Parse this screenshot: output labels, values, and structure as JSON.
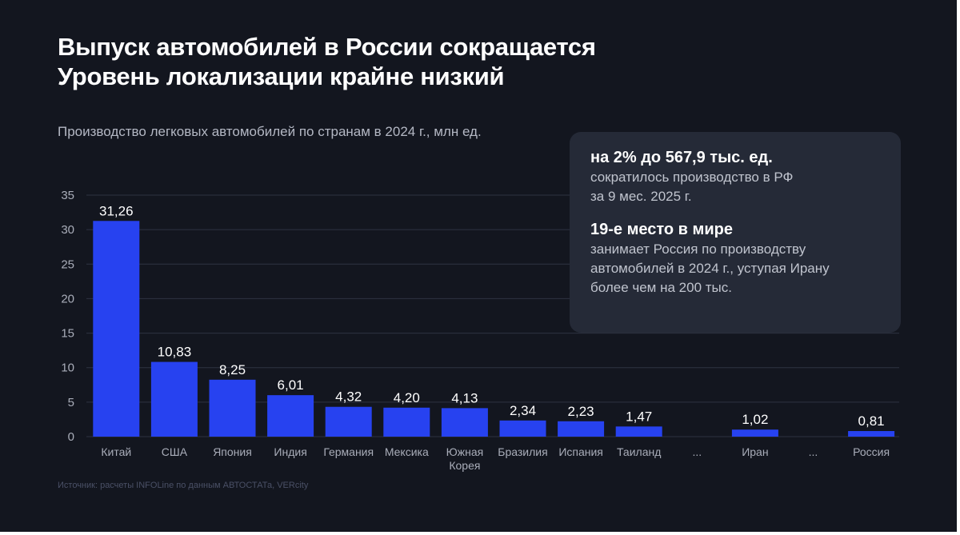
{
  "title_line1": "Выпуск автомобилей в России сокращается",
  "title_line2": "Уровень локализации крайне низкий",
  "source": "Источник: расчеты INFOLine по данным АВТОСТАТа, VERcity",
  "card": {
    "stat1_head": "на 2% до 567,9 тыс. ед.",
    "stat1_line1": "сократилось производство в РФ",
    "stat1_line2": "за 9 мес. 2025 г.",
    "stat2_head": "19-е место в мире",
    "stat2_line1": "занимает Россия по производству",
    "stat2_line2": "автомобилей в 2024 г., уступая Ирану",
    "stat2_line3": "более чем на 200 тыс."
  },
  "colors": {
    "background": "#13161f",
    "bar": "#2742f0",
    "card": "#252a37",
    "grid": "#2e3342"
  },
  "chart_data": {
    "type": "bar",
    "title": "Производство легковых автомобилей по странам в 2024 г., млн ед.",
    "categories": [
      "Китай",
      "США",
      "Япония",
      "Индия",
      "Германия",
      "Мексика",
      "Южная Корея",
      "Бразилия",
      "Испания",
      "Таиланд",
      "...",
      "Иран",
      "...",
      "Россия"
    ],
    "values": [
      31.26,
      10.83,
      8.25,
      6.01,
      4.32,
      4.2,
      4.13,
      2.34,
      2.23,
      1.47,
      null,
      1.02,
      null,
      0.81
    ],
    "value_labels": [
      "31,26",
      "10,83",
      "8,25",
      "6,01",
      "4,32",
      "4,20",
      "4,13",
      "2,34",
      "2,23",
      "1,47",
      "",
      "1,02",
      "",
      "0,81"
    ],
    "yticks": [
      0,
      5,
      10,
      15,
      20,
      25,
      30,
      35
    ],
    "ylim": [
      0,
      35
    ],
    "xlabel": "",
    "ylabel": "",
    "grid": true
  }
}
